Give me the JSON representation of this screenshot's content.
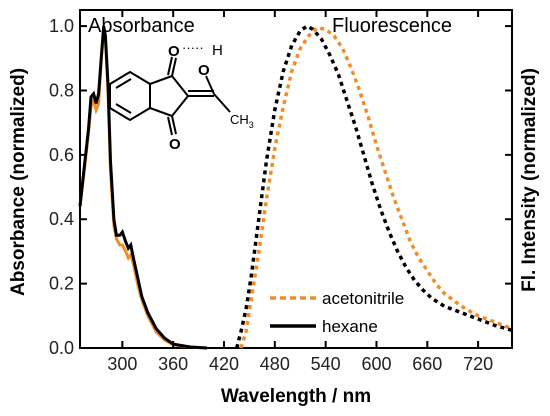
{
  "chart_data": {
    "type": "line",
    "xlabel": "Wavelength / nm",
    "ylabel_left": "Absorbance (normalized)",
    "ylabel_right": "Fl. Intensity (normalized)",
    "xlim": [
      250,
      760
    ],
    "ylim": [
      0,
      1.05
    ],
    "x_ticks": [
      300,
      360,
      420,
      480,
      540,
      600,
      660,
      720
    ],
    "y_ticks": [
      0.0,
      0.2,
      0.4,
      0.6,
      0.8,
      1.0
    ],
    "y_tick_labels": [
      "0.0",
      "0.2",
      "0.4",
      "0.6",
      "0.8",
      "1.0"
    ],
    "annotations": {
      "absorbance": "Absorbance",
      "fluorescence": "Fluorescence"
    },
    "legend": [
      {
        "name": "acetonitrile",
        "color": "#f28c28",
        "style": "dashed"
      },
      {
        "name": "hexane",
        "color": "#000000",
        "style": "solid"
      }
    ],
    "series": [
      {
        "name": "acetonitrile",
        "kind": "absorbance",
        "color": "#f28c28",
        "style": "solid",
        "points": [
          [
            250,
            0.44
          ],
          [
            255,
            0.55
          ],
          [
            260,
            0.67
          ],
          [
            263,
            0.75
          ],
          [
            266,
            0.77
          ],
          [
            269,
            0.74
          ],
          [
            272,
            0.76
          ],
          [
            275,
            0.89
          ],
          [
            278,
            0.99
          ],
          [
            280,
            0.96
          ],
          [
            283,
            0.8
          ],
          [
            286,
            0.55
          ],
          [
            290,
            0.38
          ],
          [
            293,
            0.34
          ],
          [
            297,
            0.32
          ],
          [
            300,
            0.32
          ],
          [
            304,
            0.3
          ],
          [
            307,
            0.28
          ],
          [
            310,
            0.29
          ],
          [
            313,
            0.26
          ],
          [
            318,
            0.2
          ],
          [
            323,
            0.15
          ],
          [
            330,
            0.1
          ],
          [
            340,
            0.05
          ],
          [
            350,
            0.025
          ],
          [
            360,
            0.01
          ],
          [
            380,
            0.003
          ],
          [
            400,
            0.0
          ]
        ]
      },
      {
        "name": "hexane",
        "kind": "absorbance",
        "color": "#000000",
        "style": "solid",
        "points": [
          [
            250,
            0.44
          ],
          [
            255,
            0.56
          ],
          [
            260,
            0.68
          ],
          [
            263,
            0.78
          ],
          [
            266,
            0.79
          ],
          [
            269,
            0.76
          ],
          [
            272,
            0.79
          ],
          [
            275,
            0.9
          ],
          [
            278,
            1.0
          ],
          [
            280,
            0.97
          ],
          [
            283,
            0.82
          ],
          [
            286,
            0.58
          ],
          [
            290,
            0.4
          ],
          [
            293,
            0.35
          ],
          [
            297,
            0.35
          ],
          [
            300,
            0.36
          ],
          [
            304,
            0.33
          ],
          [
            307,
            0.31
          ],
          [
            310,
            0.32
          ],
          [
            313,
            0.28
          ],
          [
            318,
            0.22
          ],
          [
            323,
            0.16
          ],
          [
            330,
            0.11
          ],
          [
            340,
            0.06
          ],
          [
            350,
            0.03
          ],
          [
            360,
            0.012
          ],
          [
            380,
            0.003
          ],
          [
            400,
            0.0
          ]
        ]
      },
      {
        "name": "acetonitrile",
        "kind": "fluorescence",
        "color": "#f28c28",
        "style": "dashed",
        "points": [
          [
            440,
            0.0
          ],
          [
            446,
            0.05
          ],
          [
            452,
            0.15
          ],
          [
            460,
            0.28
          ],
          [
            470,
            0.46
          ],
          [
            480,
            0.62
          ],
          [
            490,
            0.75
          ],
          [
            500,
            0.86
          ],
          [
            510,
            0.93
          ],
          [
            520,
            0.97
          ],
          [
            530,
            0.995
          ],
          [
            540,
            0.99
          ],
          [
            550,
            0.97
          ],
          [
            560,
            0.93
          ],
          [
            570,
            0.87
          ],
          [
            580,
            0.8
          ],
          [
            590,
            0.72
          ],
          [
            600,
            0.63
          ],
          [
            610,
            0.55
          ],
          [
            620,
            0.47
          ],
          [
            630,
            0.4
          ],
          [
            640,
            0.33
          ],
          [
            650,
            0.28
          ],
          [
            660,
            0.24
          ],
          [
            670,
            0.2
          ],
          [
            680,
            0.17
          ],
          [
            690,
            0.15
          ],
          [
            700,
            0.13
          ],
          [
            710,
            0.115
          ],
          [
            720,
            0.1
          ],
          [
            730,
            0.09
          ],
          [
            740,
            0.08
          ],
          [
            750,
            0.07
          ],
          [
            760,
            0.06
          ]
        ]
      },
      {
        "name": "hexane",
        "kind": "fluorescence",
        "color": "#000000",
        "style": "dashed",
        "points": [
          [
            435,
            0.0
          ],
          [
            440,
            0.05
          ],
          [
            446,
            0.12
          ],
          [
            452,
            0.22
          ],
          [
            460,
            0.38
          ],
          [
            470,
            0.58
          ],
          [
            480,
            0.74
          ],
          [
            490,
            0.86
          ],
          [
            500,
            0.94
          ],
          [
            510,
            0.985
          ],
          [
            518,
            1.0
          ],
          [
            525,
            0.99
          ],
          [
            535,
            0.96
          ],
          [
            545,
            0.91
          ],
          [
            555,
            0.85
          ],
          [
            565,
            0.77
          ],
          [
            575,
            0.69
          ],
          [
            585,
            0.6
          ],
          [
            595,
            0.51
          ],
          [
            605,
            0.43
          ],
          [
            615,
            0.36
          ],
          [
            625,
            0.3
          ],
          [
            635,
            0.25
          ],
          [
            645,
            0.21
          ],
          [
            655,
            0.18
          ],
          [
            665,
            0.155
          ],
          [
            680,
            0.13
          ],
          [
            700,
            0.11
          ],
          [
            720,
            0.09
          ],
          [
            740,
            0.07
          ],
          [
            760,
            0.055
          ]
        ]
      }
    ]
  },
  "structure": {
    "atom_O_top": "O",
    "atom_H": "H",
    "atom_O_enol": "O",
    "atom_O_bottom": "O",
    "ch3_C": "CH",
    "ch3_sub": "3",
    "hbond": "·····",
    "o_color": "#e8141e"
  }
}
